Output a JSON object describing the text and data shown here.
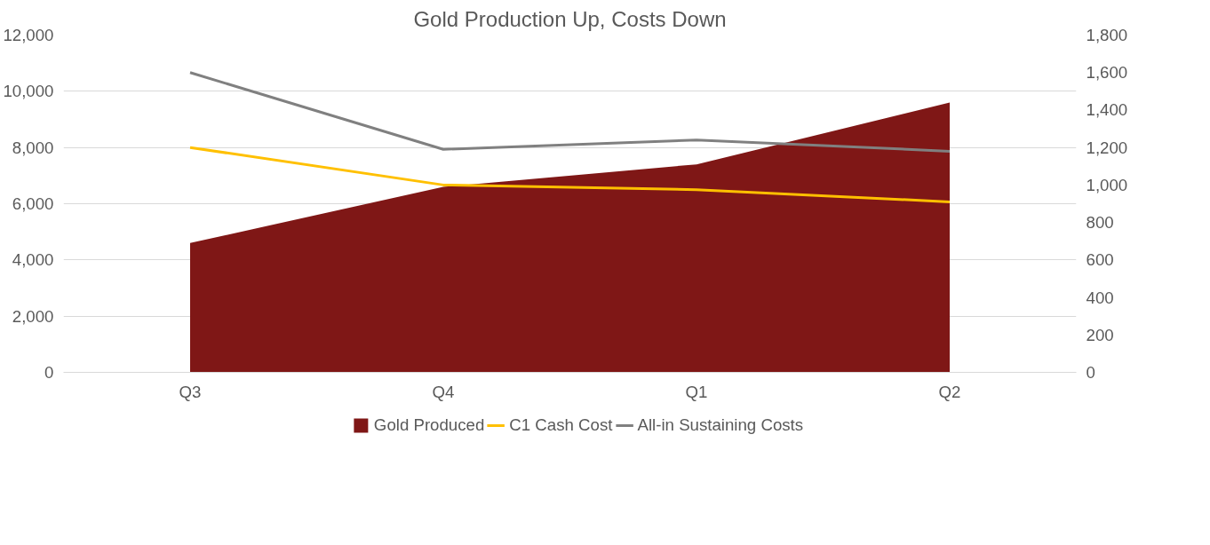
{
  "chart_data": {
    "type": "area",
    "title": "Gold Production Up, Costs Down",
    "categories": [
      "Q3",
      "Q4",
      "Q1",
      "Q2"
    ],
    "series": [
      {
        "name": "Gold Produced",
        "color": "#7f1716",
        "values": [
          4600,
          6600,
          7400,
          9600
        ]
      },
      {
        "name": "C1 Cash Cost",
        "type": "line",
        "axis": "y2",
        "color": "#ffc000",
        "values": [
          1200,
          1000,
          975,
          910
        ]
      },
      {
        "name": "All-in Sustaining Costs",
        "type": "line",
        "axis": "y2",
        "color": "#808080",
        "values": [
          1600,
          1190,
          1240,
          1180
        ]
      }
    ],
    "ylim": [
      0,
      12000
    ],
    "yticks": [
      {
        "value": 0,
        "label": "0"
      },
      {
        "value": 2000,
        "label": "2,000"
      },
      {
        "value": 4000,
        "label": "4,000"
      },
      {
        "value": 6000,
        "label": "6,000"
      },
      {
        "value": 8000,
        "label": "8,000"
      },
      {
        "value": 10000,
        "label": "10,000"
      },
      {
        "value": 12000,
        "label": "12,000"
      }
    ],
    "y2lim": [
      0,
      1800
    ],
    "y2ticks": [
      0,
      200,
      400,
      600,
      800,
      {
        "value": 1000,
        "label": "1,000"
      },
      {
        "value": 1200,
        "label": "1,200"
      },
      {
        "value": 1400,
        "label": "1,400"
      },
      {
        "value": 1600,
        "label": "1,600"
      },
      {
        "value": 1800,
        "label": "1,800"
      }
    ],
    "grid": "y",
    "legend": "bottom"
  }
}
